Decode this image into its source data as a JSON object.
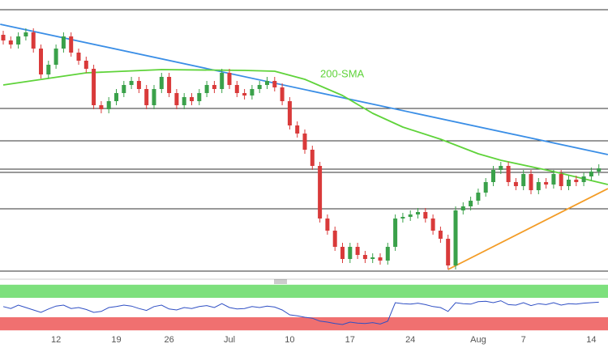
{
  "chart_data": {
    "type": "candlestick",
    "ylim": [
      0,
      343
    ],
    "categories": [
      null,
      null,
      null,
      null,
      null,
      null,
      null,
      "12",
      null,
      null,
      null,
      null,
      null,
      null,
      null,
      "19",
      null,
      null,
      null,
      null,
      null,
      null,
      "26",
      null,
      null,
      null,
      null,
      null,
      null,
      null,
      "Jul",
      null,
      null,
      null,
      null,
      null,
      null,
      null,
      "10",
      null,
      null,
      null,
      null,
      null,
      null,
      null,
      "17",
      null,
      null,
      null,
      null,
      null,
      null,
      null,
      "24",
      null,
      null,
      null,
      null,
      null,
      null,
      null,
      null,
      "Aug",
      null,
      null,
      null,
      null,
      null,
      "7",
      null,
      null,
      null,
      null,
      null,
      null,
      null,
      null,
      "14",
      null
    ],
    "open": [
      300,
      293,
      288,
      298,
      303,
      283,
      251,
      263,
      283,
      298,
      278,
      268,
      258,
      213,
      208,
      218,
      228,
      238,
      243,
      233,
      213,
      233,
      248,
      228,
      213,
      223,
      218,
      228,
      238,
      233,
      253,
      238,
      228,
      225,
      233,
      238,
      243,
      235,
      218,
      188,
      178,
      158,
      138,
      73,
      58,
      38,
      23,
      38,
      28,
      23,
      25,
      21,
      38,
      73,
      75,
      78,
      81,
      73,
      58,
      48,
      15,
      83,
      88,
      95,
      105,
      118,
      133,
      138,
      118,
      113,
      128,
      108,
      118,
      115,
      128,
      113,
      121,
      118,
      125,
      131
    ],
    "high": [
      305,
      298,
      303,
      308,
      308,
      288,
      268,
      288,
      303,
      303,
      283,
      273,
      263,
      218,
      223,
      233,
      243,
      248,
      248,
      238,
      238,
      253,
      253,
      233,
      228,
      228,
      233,
      243,
      243,
      258,
      258,
      243,
      233,
      238,
      243,
      248,
      248,
      240,
      223,
      193,
      183,
      163,
      143,
      78,
      63,
      43,
      43,
      43,
      33,
      30,
      30,
      43,
      78,
      80,
      83,
      86,
      86,
      78,
      63,
      53,
      88,
      93,
      100,
      110,
      123,
      138,
      143,
      143,
      123,
      133,
      133,
      123,
      123,
      133,
      133,
      126,
      126,
      130,
      136,
      140
    ],
    "low": [
      288,
      283,
      283,
      293,
      278,
      246,
      246,
      258,
      278,
      273,
      263,
      253,
      208,
      203,
      203,
      213,
      223,
      233,
      228,
      208,
      208,
      228,
      223,
      208,
      208,
      213,
      213,
      223,
      228,
      228,
      233,
      223,
      220,
      220,
      228,
      233,
      230,
      213,
      183,
      173,
      153,
      133,
      68,
      53,
      33,
      18,
      18,
      23,
      18,
      18,
      16,
      16,
      33,
      68,
      70,
      73,
      68,
      53,
      43,
      10,
      10,
      78,
      83,
      90,
      100,
      113,
      128,
      113,
      108,
      108,
      103,
      103,
      110,
      110,
      108,
      108,
      113,
      113,
      120,
      126
    ],
    "close": [
      293,
      288,
      298,
      303,
      283,
      251,
      263,
      283,
      298,
      278,
      268,
      258,
      213,
      208,
      218,
      228,
      238,
      243,
      233,
      213,
      233,
      248,
      228,
      213,
      223,
      218,
      228,
      238,
      233,
      253,
      238,
      228,
      225,
      233,
      238,
      243,
      235,
      218,
      188,
      178,
      158,
      138,
      73,
      58,
      38,
      23,
      38,
      28,
      23,
      25,
      21,
      38,
      73,
      75,
      78,
      81,
      73,
      58,
      48,
      15,
      83,
      88,
      95,
      105,
      118,
      133,
      138,
      118,
      113,
      128,
      108,
      118,
      115,
      128,
      113,
      121,
      118,
      125,
      131,
      135
    ],
    "up_color": "#3aa14a",
    "down_color": "#d93a3a",
    "levels": [
      331,
      209,
      169,
      134,
      130,
      85,
      8
    ],
    "trendlines": [
      {
        "color": "#3a8ee6",
        "x": [
          -0.4,
          80.2
        ],
        "values": [
          313,
          152
        ]
      },
      {
        "color": "#f39c26",
        "x": [
          59,
          80.2
        ],
        "values": [
          10,
          110
        ]
      }
    ],
    "sma": {
      "name": "200-SMA",
      "color": "#5fd33a",
      "x": [
        0,
        11,
        21,
        32,
        36,
        40,
        45,
        49,
        53,
        58,
        63,
        66,
        73,
        80.2
      ],
      "values": [
        238,
        253,
        257,
        256,
        255,
        245,
        225,
        203,
        186,
        171,
        153,
        145,
        131,
        115
      ]
    },
    "rsi": {
      "ylim": [
        0,
        100
      ],
      "color": "#2f4fc4",
      "overbought": [
        70,
        97
      ],
      "oversold": [
        3,
        30
      ],
      "values": [
        52,
        48,
        55,
        50,
        45,
        40,
        47,
        53,
        55,
        48,
        50,
        46,
        40,
        42,
        50,
        52,
        55,
        53,
        48,
        44,
        52,
        55,
        47,
        45,
        50,
        48,
        52,
        54,
        50,
        58,
        50,
        47,
        48,
        52,
        50,
        53,
        51,
        45,
        35,
        33,
        30,
        28,
        22,
        20,
        17,
        15,
        20,
        18,
        17,
        19,
        16,
        22,
        60,
        58,
        57,
        59,
        56,
        52,
        50,
        42,
        60,
        58,
        57,
        62,
        63,
        60,
        64,
        56,
        55,
        60,
        54,
        58,
        56,
        60,
        55,
        58,
        57,
        59,
        60,
        61
      ]
    }
  }
}
